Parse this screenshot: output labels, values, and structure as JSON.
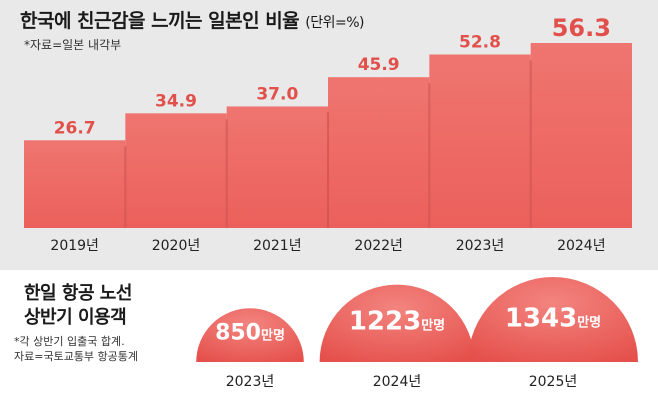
{
  "chart_data": [
    {
      "type": "bar",
      "title": "한국에 친근감을 느끼는 일본인 비율",
      "unit": "(단위=%)",
      "source": "*자료=일본 내각부",
      "categories": [
        "2019년",
        "2020년",
        "2021년",
        "2022년",
        "2023년",
        "2024년"
      ],
      "values": [
        26.7,
        34.9,
        37.0,
        45.9,
        52.8,
        56.3
      ],
      "value_labels": [
        "26.7",
        "34.9",
        "37.0",
        "45.9",
        "52.8",
        "56.3"
      ],
      "ylim": [
        0,
        60
      ],
      "grid": false
    },
    {
      "type": "bar",
      "title_line1": "한일 항공 노선",
      "title_line2": "상반기 이용객",
      "note_line1": "*각 상반기 입출국 합계.",
      "note_line2": "자료=국토교통부 항공통계",
      "categories": [
        "2023년",
        "2024년",
        "2025년"
      ],
      "values": [
        850,
        1223,
        1343
      ],
      "value_labels": [
        "850",
        "1223",
        "1343"
      ],
      "value_unit": "만명"
    }
  ],
  "colors": {
    "bar": "#ec605b",
    "bar_top": "#ef7570",
    "bar_gap": "#c94a46",
    "value_text": "#e2504b",
    "panel_bg": "#e9e9e9"
  }
}
